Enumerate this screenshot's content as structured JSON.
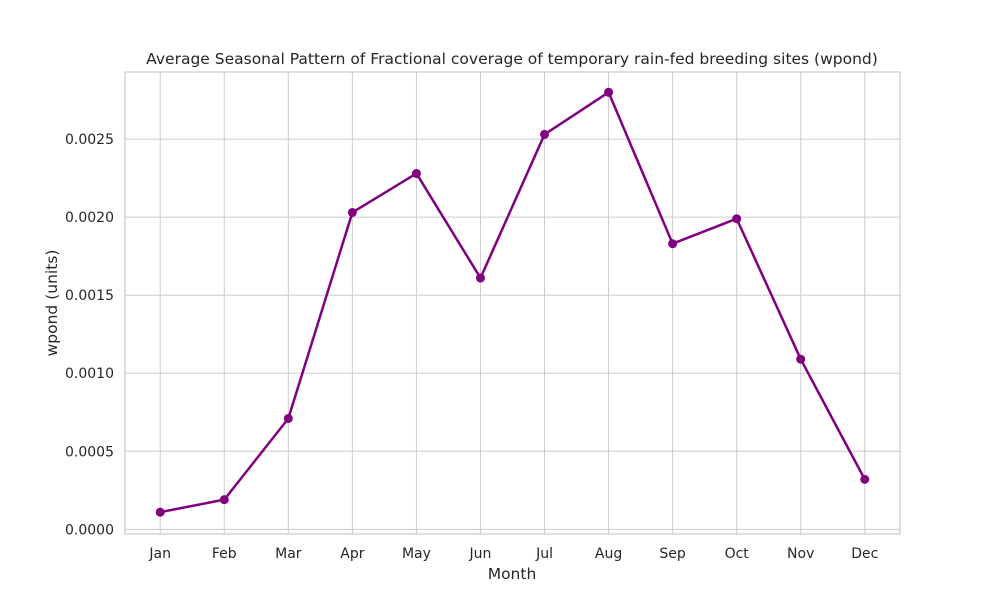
{
  "chart_data": {
    "type": "line",
    "title": "Average Seasonal Pattern of Fractional coverage of temporary rain-fed breeding sites (wpond)",
    "xlabel": "Month",
    "ylabel": "wpond (units)",
    "categories": [
      "Jan",
      "Feb",
      "Mar",
      "Apr",
      "May",
      "Jun",
      "Jul",
      "Aug",
      "Sep",
      "Oct",
      "Nov",
      "Dec"
    ],
    "series": [
      {
        "values": [
          0.00011,
          0.00019,
          0.00071,
          0.00203,
          0.00228,
          0.00161,
          0.00253,
          0.0028,
          0.00183,
          0.00199,
          0.00109,
          0.00032
        ],
        "color": "#800080",
        "marker": "circle"
      }
    ],
    "ylim": [
      -3e-05,
      0.00293
    ],
    "yticks": [
      0.0,
      0.0005,
      0.001,
      0.0015,
      0.002,
      0.0025
    ],
    "ytick_labels": [
      "0.0000",
      "0.0005",
      "0.0010",
      "0.0015",
      "0.0020",
      "0.0025"
    ],
    "grid": true,
    "style": "seaborn-whitegrid"
  }
}
